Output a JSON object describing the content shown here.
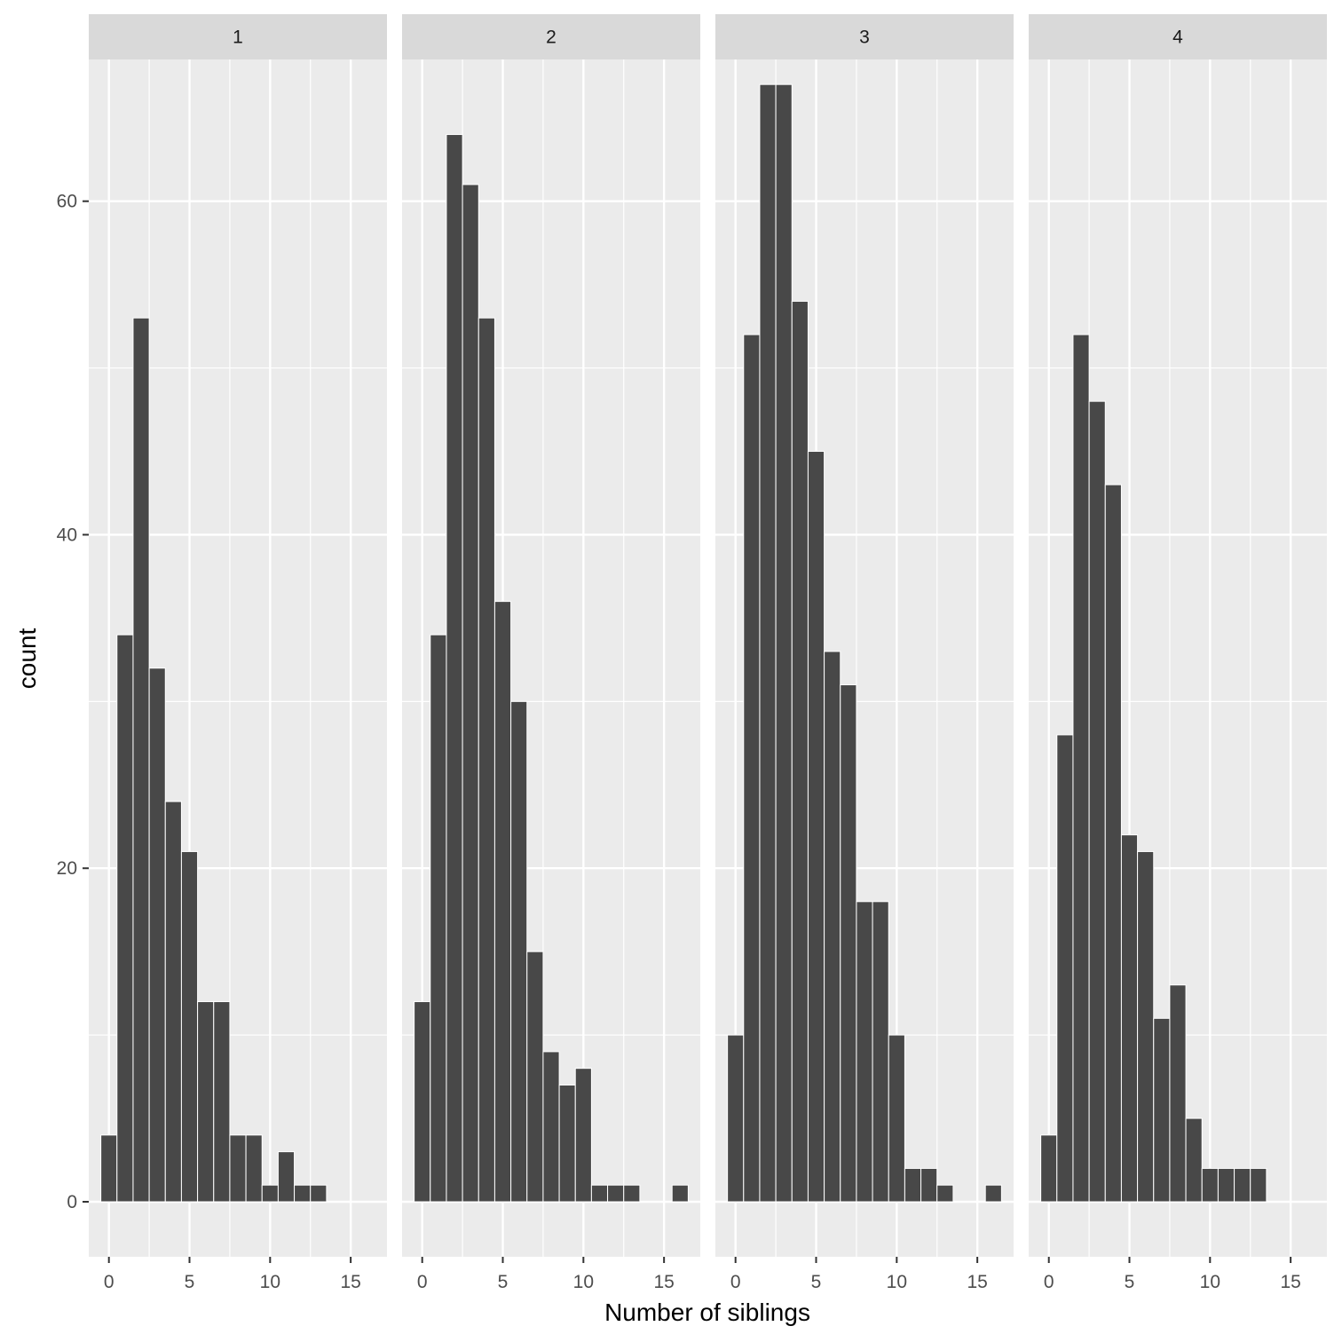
{
  "chart_data": {
    "type": "bar",
    "subtype": "faceted-histogram",
    "xlabel": "Number of siblings",
    "ylabel": "count",
    "xlim": [
      -1.25,
      17.25
    ],
    "ylim": [
      -3.3,
      68.5
    ],
    "x_ticks": [
      0,
      5,
      10,
      15
    ],
    "y_ticks": [
      0,
      20,
      40,
      60
    ],
    "grid": true,
    "bin_width": 1,
    "colors": {
      "bar": "#484848",
      "bar_edge": "#ffffff",
      "panel_bg": "#ebebeb",
      "strip_bg": "#d9d9d9",
      "grid": "#ffffff"
    },
    "panels": [
      {
        "label": "1",
        "x": [
          0,
          1,
          2,
          3,
          4,
          5,
          6,
          7,
          8,
          9,
          10,
          11,
          12,
          13
        ],
        "values": [
          4,
          34,
          53,
          32,
          24,
          21,
          12,
          12,
          4,
          4,
          1,
          3,
          1,
          1
        ]
      },
      {
        "label": "2",
        "x": [
          0,
          1,
          2,
          3,
          4,
          5,
          6,
          7,
          8,
          9,
          10,
          11,
          12,
          13,
          14,
          15,
          16
        ],
        "values": [
          12,
          34,
          64,
          61,
          53,
          36,
          30,
          15,
          9,
          7,
          8,
          1,
          1,
          1,
          0,
          0,
          1
        ]
      },
      {
        "label": "3",
        "x": [
          0,
          1,
          2,
          3,
          4,
          5,
          6,
          7,
          8,
          9,
          10,
          11,
          12,
          13,
          14,
          15,
          16
        ],
        "values": [
          10,
          52,
          67,
          67,
          54,
          45,
          33,
          31,
          18,
          18,
          10,
          2,
          2,
          1,
          0,
          0,
          1
        ]
      },
      {
        "label": "4",
        "x": [
          0,
          1,
          2,
          3,
          4,
          5,
          6,
          7,
          8,
          9,
          10,
          11,
          12,
          13
        ],
        "values": [
          4,
          28,
          52,
          48,
          43,
          22,
          21,
          11,
          13,
          5,
          2,
          2,
          2,
          2
        ]
      }
    ]
  }
}
